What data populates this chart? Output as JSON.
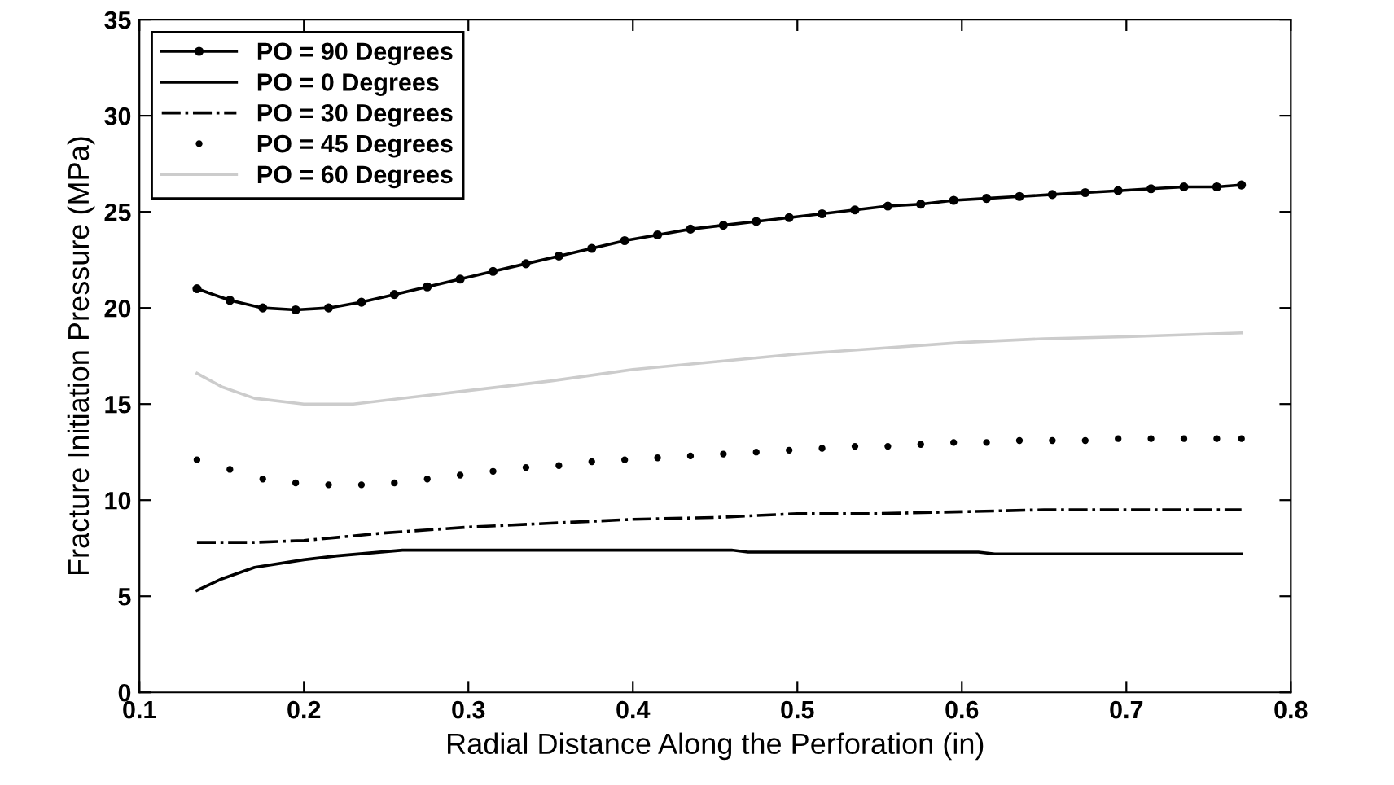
{
  "chart_data": {
    "type": "line",
    "xlabel": "Radial Distance Along the Perforation (in)",
    "ylabel": "Fracture Initiation Pressure (MPa)",
    "xlim": [
      0.1,
      0.8
    ],
    "xticks": [
      0.1,
      0.2,
      0.3,
      0.4,
      0.5,
      0.6,
      0.7,
      0.8
    ],
    "ylim": [
      0,
      35
    ],
    "yticks": [
      0,
      5,
      10,
      15,
      20,
      25,
      30,
      35
    ],
    "grid": false,
    "legend": "top left",
    "series": [
      {
        "name": "PO = 90 Degrees",
        "color": "#000000",
        "marker": "circle",
        "line_style": "solid",
        "x": [
          0.135,
          0.155,
          0.175,
          0.195,
          0.215,
          0.235,
          0.255,
          0.275,
          0.295,
          0.315,
          0.335,
          0.355,
          0.375,
          0.395,
          0.415,
          0.435,
          0.455,
          0.475,
          0.495,
          0.515,
          0.535,
          0.555,
          0.575,
          0.595,
          0.615,
          0.635,
          0.655,
          0.675,
          0.695,
          0.715,
          0.735,
          0.755,
          0.77
        ],
        "values": [
          21.0,
          20.4,
          20.0,
          19.9,
          20.0,
          20.3,
          20.7,
          21.1,
          21.5,
          21.9,
          22.3,
          22.7,
          23.1,
          23.5,
          23.8,
          24.1,
          24.3,
          24.5,
          24.7,
          24.9,
          25.1,
          25.3,
          25.4,
          25.6,
          25.7,
          25.8,
          25.9,
          26.0,
          26.1,
          26.2,
          26.3,
          26.3,
          26.4
        ]
      },
      {
        "name": "PO = 0 Degrees",
        "color": "#000000",
        "marker": "none",
        "line_style": "solid",
        "x": [
          0.135,
          0.15,
          0.17,
          0.2,
          0.22,
          0.26,
          0.46,
          0.47,
          0.61,
          0.62,
          0.77
        ],
        "values": [
          5.3,
          5.9,
          6.5,
          6.9,
          7.1,
          7.4,
          7.4,
          7.3,
          7.3,
          7.2,
          7.2
        ]
      },
      {
        "name": "PO = 30 Degrees",
        "color": "#000000",
        "marker": "none",
        "line_style": "dashdot",
        "x": [
          0.135,
          0.17,
          0.2,
          0.25,
          0.3,
          0.35,
          0.4,
          0.45,
          0.5,
          0.55,
          0.6,
          0.65,
          0.7,
          0.77
        ],
        "values": [
          7.8,
          7.8,
          7.9,
          8.3,
          8.6,
          8.8,
          9.0,
          9.1,
          9.3,
          9.3,
          9.4,
          9.5,
          9.5,
          9.5
        ]
      },
      {
        "name": "PO = 45 Degrees",
        "type": "scatter",
        "color": "#000000",
        "marker": "circle",
        "x": [
          0.135,
          0.155,
          0.175,
          0.195,
          0.215,
          0.235,
          0.255,
          0.275,
          0.295,
          0.315,
          0.335,
          0.355,
          0.375,
          0.395,
          0.415,
          0.435,
          0.455,
          0.475,
          0.495,
          0.515,
          0.535,
          0.555,
          0.575,
          0.595,
          0.615,
          0.635,
          0.655,
          0.675,
          0.695,
          0.715,
          0.735,
          0.755,
          0.77
        ],
        "values": [
          12.1,
          11.6,
          11.1,
          10.9,
          10.8,
          10.8,
          10.9,
          11.1,
          11.3,
          11.5,
          11.7,
          11.8,
          12.0,
          12.1,
          12.2,
          12.3,
          12.4,
          12.5,
          12.6,
          12.7,
          12.8,
          12.8,
          12.9,
          13.0,
          13.0,
          13.1,
          13.1,
          13.1,
          13.2,
          13.2,
          13.2,
          13.2,
          13.2
        ]
      },
      {
        "name": "PO = 60 Degrees",
        "color": "#cccccc",
        "marker": "none",
        "line_style": "solid",
        "x": [
          0.135,
          0.15,
          0.17,
          0.2,
          0.23,
          0.3,
          0.35,
          0.4,
          0.45,
          0.5,
          0.55,
          0.6,
          0.65,
          0.7,
          0.77
        ],
        "values": [
          16.6,
          15.9,
          15.3,
          15.0,
          15.0,
          15.7,
          16.2,
          16.8,
          17.2,
          17.6,
          17.9,
          18.2,
          18.4,
          18.5,
          18.7
        ]
      }
    ]
  }
}
